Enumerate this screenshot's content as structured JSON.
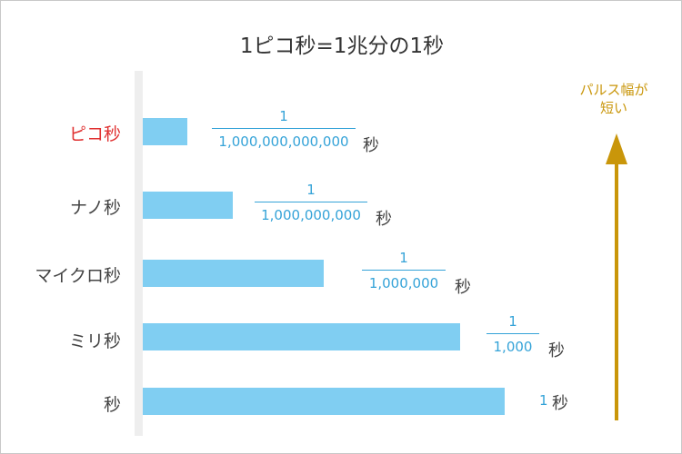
{
  "title": "1ピコ秒=1兆分の1秒",
  "rows": [
    {
      "label": "ピコ秒",
      "numerator": "1",
      "denominator": "1,000,000,000,000",
      "unit": "秒"
    },
    {
      "label": "ナノ秒",
      "numerator": "1",
      "denominator": "1,000,000,000",
      "unit": "秒"
    },
    {
      "label": "マイクロ秒",
      "numerator": "1",
      "denominator": "1,000,000",
      "unit": "秒"
    },
    {
      "label": "ミリ秒",
      "numerator": "1",
      "denominator": "1,000",
      "unit": "秒"
    },
    {
      "label": "秒",
      "value": "1",
      "unit": "秒"
    }
  ],
  "arrow": {
    "line1": "パルス幅が",
    "line2": "短い"
  },
  "colors": {
    "bar": "#80cef2",
    "fraction": "#35a3d8",
    "highlight": "#e03030",
    "arrow": "#c9960a"
  }
}
